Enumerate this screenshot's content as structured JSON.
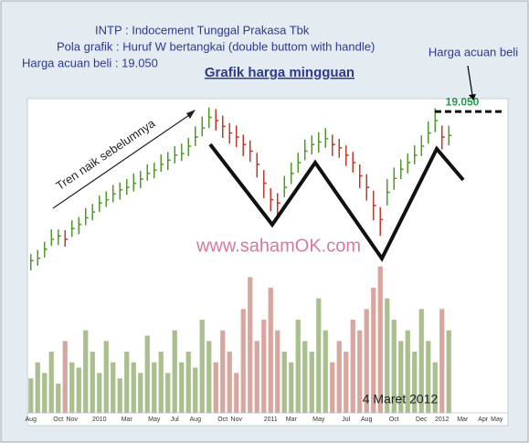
{
  "header": {
    "line1": "INTP : Indocement Tunggal Prakasa Tbk",
    "line2": "Pola grafik : Huruf W bertangkai (double buttom with handle)",
    "line3": "Harga acuan beli : 19.050"
  },
  "annotations": {
    "reference_note": "Harga acuan beli",
    "trend": "Tren naik sebelumnya",
    "watermark": "www.sahamOK.com",
    "date": "4 Maret 2012"
  },
  "chart_data": {
    "type": "ohlc",
    "title": "Grafik harga mingguan",
    "categories": [
      "Aug",
      null,
      null,
      null,
      "Oct",
      null,
      "Nov",
      null,
      null,
      null,
      "2010",
      null,
      null,
      null,
      "Mar",
      null,
      null,
      null,
      "May",
      null,
      null,
      "Jul",
      null,
      null,
      "Aug",
      null,
      null,
      null,
      "Oct",
      null,
      "Nov",
      null,
      null,
      null,
      null,
      "2011",
      null,
      null,
      "Mar",
      null,
      null,
      null,
      "May",
      null,
      null,
      null,
      "Jul",
      null,
      null,
      "Aug",
      null,
      null,
      null,
      "Oct",
      null,
      null,
      null,
      "Dec",
      null,
      null,
      "2012",
      null,
      null,
      "Mar",
      null,
      null,
      "Apr",
      null,
      "May",
      null
    ],
    "high": [
      10400,
      10650,
      11150,
      11900,
      11900,
      11850,
      12450,
      12650,
      13200,
      13450,
      13950,
      14200,
      14600,
      14750,
      14950,
      15300,
      15450,
      15850,
      15950,
      16450,
      16600,
      16950,
      17100,
      17450,
      18150,
      18750,
      19300,
      19200,
      18800,
      18350,
      18200,
      17650,
      17300,
      16550,
      15500,
      14400,
      14100,
      15150,
      15950,
      16550,
      17350,
      17600,
      17800,
      18050,
      17650,
      17400,
      17000,
      16600,
      15850,
      15250,
      14250,
      13250,
      14950,
      15650,
      16150,
      16500,
      17000,
      17600,
      18450,
      19250,
      18200,
      18200,
      null,
      null,
      null,
      null,
      null,
      null,
      null,
      null
    ],
    "low": [
      9400,
      9700,
      10200,
      10900,
      10950,
      10850,
      11450,
      11600,
      12150,
      12450,
      12950,
      13250,
      13550,
      13700,
      14000,
      14200,
      14400,
      14850,
      15000,
      15400,
      15500,
      15900,
      16050,
      16350,
      16950,
      17550,
      18050,
      17900,
      17450,
      17100,
      16900,
      16350,
      16000,
      15050,
      13800,
      13000,
      12700,
      13850,
      14650,
      15350,
      16100,
      16450,
      16550,
      16850,
      16350,
      16250,
      15750,
      15350,
      14400,
      13650,
      12450,
      11500,
      13350,
      14300,
      14950,
      15300,
      15850,
      16350,
      17100,
      17800,
      16750,
      17000,
      null,
      null,
      null,
      null,
      null,
      null,
      null,
      null
    ],
    "close": [
      10000,
      10150,
      10700,
      11300,
      11500,
      11300,
      11950,
      12200,
      12600,
      12950,
      13500,
      13700,
      14050,
      14300,
      14450,
      14700,
      14950,
      15300,
      15500,
      15850,
      16100,
      16400,
      16500,
      16950,
      17500,
      18050,
      18700,
      18500,
      18150,
      17750,
      17500,
      17050,
      16650,
      15850,
      14700,
      13700,
      13500,
      14450,
      15300,
      15950,
      16650,
      17050,
      17200,
      17400,
      17050,
      16850,
      16400,
      15950,
      15150,
      14450,
      13350,
      12500,
      14150,
      15000,
      15550,
      15950,
      16400,
      16950,
      17750,
      18500,
      17500,
      17600,
      null,
      null,
      null,
      null,
      null,
      null,
      null,
      null
    ],
    "volume": [
      3.5,
      5,
      4,
      6,
      3,
      7,
      5,
      4.5,
      8,
      6,
      4,
      7,
      5,
      3.5,
      6,
      5,
      4,
      7.5,
      5,
      6,
      4,
      8,
      5,
      6,
      4.5,
      9,
      7,
      5,
      8,
      6,
      4,
      10,
      13,
      7,
      9,
      12,
      8,
      6,
      5,
      9,
      7,
      6,
      11,
      8,
      5,
      7,
      6,
      9,
      8,
      10,
      12,
      14,
      11,
      9,
      7,
      8,
      6,
      10,
      7,
      5,
      10,
      8,
      null,
      null,
      null,
      null,
      null,
      null,
      null,
      null
    ],
    "ylim": [
      600,
      20000
    ],
    "y2lim": [
      0,
      30
    ],
    "up_color": "#4f9a2a",
    "down_color": "#c0392b",
    "volume_up_color": "#a9bf8e",
    "volume_down_color": "#d7a79f",
    "reference": {
      "value": 19050,
      "label": "19.050"
    }
  }
}
